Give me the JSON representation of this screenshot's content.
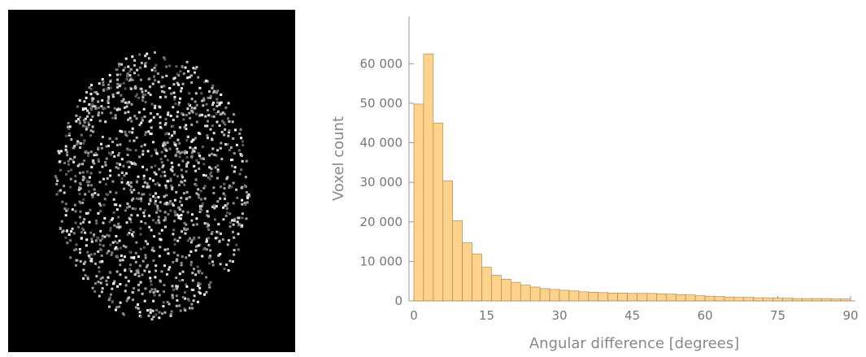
{
  "chart_data": {
    "type": "histogram",
    "xlabel": "Angular difference [degrees]",
    "ylabel": "Voxel count",
    "bins": [
      0,
      2,
      4,
      6,
      8,
      10,
      12,
      14,
      16,
      18,
      20,
      22,
      24,
      26,
      28,
      30,
      32,
      34,
      36,
      38,
      40,
      42,
      44,
      46,
      48,
      50,
      52,
      54,
      56,
      58,
      60,
      62,
      64,
      66,
      68,
      70,
      72,
      74,
      76,
      78,
      80,
      82,
      84,
      86,
      88,
      90
    ],
    "values": [
      49800,
      62500,
      45000,
      30400,
      20300,
      14700,
      11900,
      8500,
      6500,
      5500,
      4700,
      4000,
      3500,
      3100,
      2900,
      2700,
      2500,
      2300,
      2200,
      2100,
      2000,
      2000,
      1900,
      1900,
      1900,
      1800,
      1700,
      1600,
      1500,
      1300,
      1200,
      1100,
      1000,
      900,
      900,
      800,
      800,
      700,
      700,
      600,
      600,
      600,
      600,
      500,
      500
    ],
    "color": "#fdd28a",
    "edgecolor": "#a08050",
    "xlim": [
      -1,
      91
    ],
    "ylim": [
      0,
      72000
    ],
    "xticks": [
      0,
      15,
      30,
      45,
      60,
      75,
      90
    ],
    "yticks": [
      0,
      {
        "value": 10000,
        "label": "10 000"
      },
      {
        "value": 20000,
        "label": "20 000"
      },
      {
        "value": 30000,
        "label": "30 000"
      },
      {
        "value": 40000,
        "label": "40 000"
      },
      {
        "value": 50000,
        "label": "50 000"
      },
      {
        "value": 60000,
        "label": "60 000"
      }
    ]
  }
}
